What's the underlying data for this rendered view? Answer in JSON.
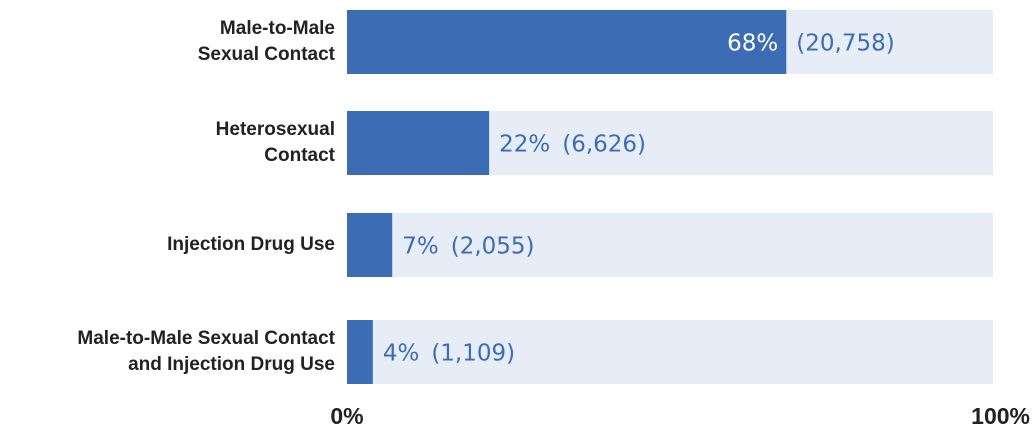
{
  "chart_data": {
    "type": "bar",
    "orientation": "horizontal",
    "categories": [
      [
        "Male-to-Male",
        "Sexual Contact"
      ],
      [
        "Heterosexual",
        "Contact"
      ],
      [
        "Injection Drug Use"
      ],
      [
        "Male-to-Male Sexual Contact",
        "and Injection Drug Use"
      ]
    ],
    "values": [
      68,
      22,
      7,
      4
    ],
    "value_labels": [
      "68%",
      "22%",
      "7%",
      "4%"
    ],
    "counts": [
      20758,
      6626,
      2055,
      1109
    ],
    "count_labels": [
      "(20,758)",
      "(6,626)",
      "(2,055)",
      "(1,109)"
    ],
    "color": "#3b6cb4",
    "track_color": "#e7edf7",
    "xlim": [
      0,
      100
    ],
    "xticks": [
      {
        "value": 0,
        "label": "0%"
      },
      {
        "value": 100,
        "label": "100%"
      }
    ]
  }
}
